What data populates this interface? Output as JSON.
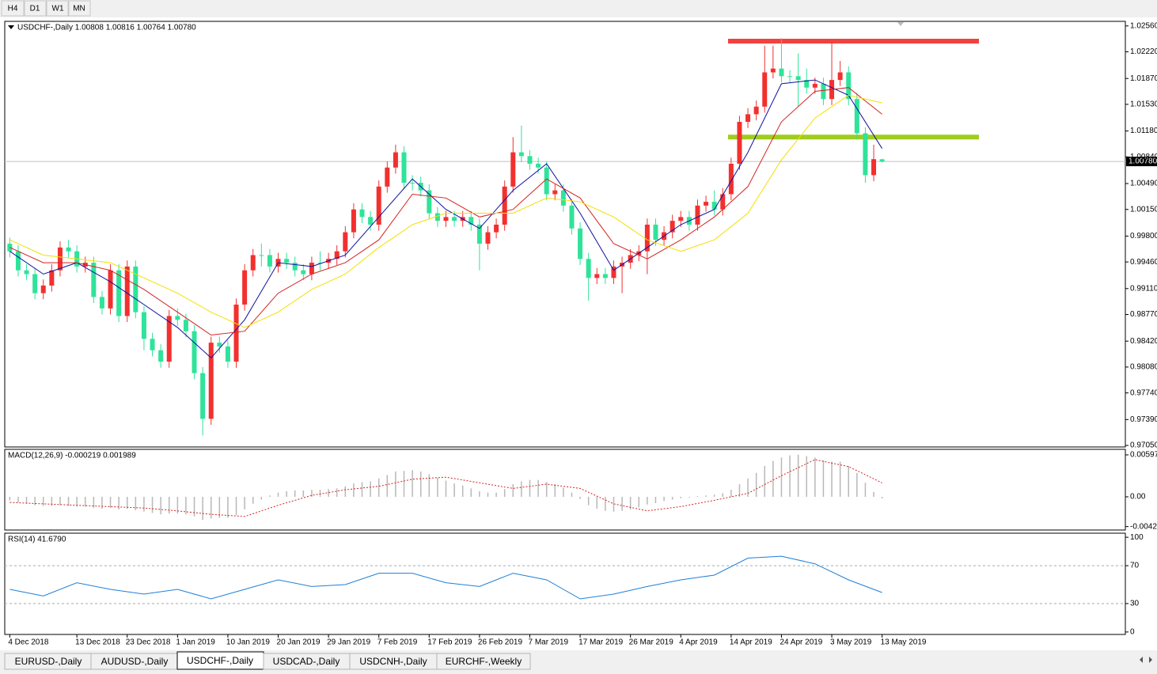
{
  "toolbar": {
    "periods": [
      "H4",
      "D1",
      "W1",
      "MN"
    ]
  },
  "tabs": {
    "items": [
      "EURUSD-,Daily",
      "AUDUSD-,Daily",
      "USDCHF-,Daily",
      "USDCAD-,Daily",
      "USDCNH-,Daily",
      "EURCHF-,Weekly"
    ]
  },
  "chart_data": [
    {
      "type": "candlestick",
      "title": "USDCHF-,Daily  1.00808 1.00816 1.00764 1.00780",
      "up_color": "#f2302e",
      "down_color": "#2fe39a",
      "open": [
        0.997,
        0.996,
        0.9935,
        0.993,
        0.9905,
        0.9915,
        0.9935,
        0.9965,
        0.996,
        0.994,
        0.9945,
        0.99,
        0.9885,
        0.9935,
        0.9875,
        0.994,
        0.988,
        0.9845,
        0.983,
        0.9815,
        0.9875,
        0.987,
        0.9855,
        0.98,
        0.974,
        0.984,
        0.9835,
        0.9815,
        0.989,
        0.9935,
        0.9955,
        0.9955,
        0.994,
        0.995,
        0.9945,
        0.9935,
        0.993,
        0.9945,
        0.9945,
        0.995,
        0.996,
        0.9985,
        1.0015,
        1.0005,
        0.9995,
        1.0045,
        1.007,
        1.009,
        1.005,
        1.005,
        1.004,
        1.001,
        1.0,
        1.0005,
        1.0,
        1.0005,
        0.9995,
        0.997,
        0.9985,
        0.9995,
        1.0045,
        1.009,
        1.0085,
        1.0075,
        1.007,
        1.0035,
        1.004,
        1.002,
        0.999,
        0.995,
        0.9925,
        0.993,
        0.9925,
        0.994,
        0.9945,
        0.9955,
        0.996,
        0.9995,
        0.9975,
        0.9985,
        1.0,
        1.0005,
        0.9995,
        1.002,
        1.0025,
        1.0015,
        1.0035,
        1.0075,
        1.013,
        1.014,
        1.015,
        1.0195,
        1.02,
        1.019,
        1.019,
        1.0185,
        1.0175,
        1.018,
        1.016,
        1.0185,
        1.0195,
        1.016,
        1.0115,
        1.006,
        1.00808
      ],
      "high": [
        0.9978,
        0.9968,
        0.9943,
        0.9938,
        0.9923,
        0.9943,
        0.9973,
        0.9975,
        0.9968,
        0.9953,
        0.9953,
        0.9908,
        0.9943,
        0.9943,
        0.9948,
        0.9948,
        0.9888,
        0.9853,
        0.9838,
        0.9883,
        0.9885,
        0.9878,
        0.9863,
        0.9808,
        0.9848,
        0.9848,
        0.9843,
        0.9898,
        0.9943,
        0.9963,
        0.997,
        0.9963,
        0.9958,
        0.9958,
        0.9953,
        0.9943,
        0.9953,
        0.996,
        0.9958,
        0.9968,
        0.9993,
        1.0023,
        1.0023,
        1.0013,
        1.0053,
        1.0078,
        1.01,
        1.0098,
        1.006,
        1.0058,
        1.0048,
        1.0018,
        1.0013,
        1.0013,
        1.0013,
        1.0013,
        1.0003,
        0.9993,
        1.0003,
        1.0053,
        1.011,
        1.0125,
        1.0093,
        1.0083,
        1.0078,
        1.0048,
        1.0048,
        1.0028,
        0.9998,
        0.9958,
        0.9938,
        0.9938,
        0.9948,
        0.9953,
        0.9963,
        0.9968,
        1.0003,
        1.0003,
        0.9993,
        1.0008,
        1.0013,
        1.0013,
        1.0028,
        1.0033,
        1.004,
        1.0043,
        1.0083,
        1.0138,
        1.0148,
        1.0158,
        1.023,
        1.023,
        1.024,
        1.0198,
        1.022,
        1.02,
        1.0188,
        1.0188,
        1.0235,
        1.021,
        1.0203,
        1.0168,
        1.0123,
        1.01,
        1.00816
      ],
      "low": [
        0.9952,
        0.9927,
        0.9922,
        0.9897,
        0.9897,
        0.9907,
        0.9927,
        0.9952,
        0.9932,
        0.9932,
        0.9892,
        0.9877,
        0.9877,
        0.9867,
        0.9867,
        0.9872,
        0.983,
        0.9822,
        0.9807,
        0.9807,
        0.9862,
        0.9847,
        0.9792,
        0.9718,
        0.9732,
        0.9827,
        0.9807,
        0.9807,
        0.9882,
        0.9927,
        0.994,
        0.9932,
        0.9932,
        0.9937,
        0.9927,
        0.9922,
        0.9922,
        0.9935,
        0.9937,
        0.9942,
        0.9952,
        0.9977,
        0.9997,
        0.9987,
        0.9987,
        1.0037,
        1.0062,
        1.0042,
        1.004,
        1.0032,
        1.0002,
        0.9992,
        0.9992,
        0.9992,
        0.9992,
        0.9987,
        0.9935,
        0.9962,
        0.9977,
        0.9987,
        1.0037,
        1.0077,
        1.0067,
        1.0062,
        1.0027,
        1.0027,
        1.0012,
        0.9982,
        0.9942,
        0.9895,
        0.9917,
        0.9917,
        0.9917,
        0.9905,
        0.9937,
        0.9947,
        0.993,
        0.9967,
        0.9967,
        0.9977,
        0.9992,
        0.9987,
        0.9987,
        1.0012,
        1.0007,
        1.0007,
        1.0027,
        1.0067,
        1.0122,
        1.0132,
        1.0142,
        1.0187,
        1.0182,
        1.0182,
        1.015,
        1.0167,
        1.0167,
        1.0152,
        1.0152,
        1.0177,
        1.0152,
        1.0107,
        1.005,
        1.0052,
        1.00764
      ],
      "close": [
        0.996,
        0.9935,
        0.993,
        0.9905,
        0.9915,
        0.9935,
        0.9965,
        0.996,
        0.994,
        0.9945,
        0.99,
        0.9885,
        0.9935,
        0.9875,
        0.994,
        0.988,
        0.9845,
        0.983,
        0.9815,
        0.9875,
        0.987,
        0.9855,
        0.98,
        0.974,
        0.984,
        0.9835,
        0.9815,
        0.989,
        0.9935,
        0.9955,
        0.9955,
        0.994,
        0.995,
        0.9945,
        0.9935,
        0.993,
        0.9945,
        0.9945,
        0.995,
        0.996,
        0.9985,
        1.0015,
        1.0005,
        0.9995,
        1.0045,
        1.007,
        1.009,
        1.005,
        1.005,
        1.004,
        1.001,
        1.0,
        1.0005,
        1.0,
        1.0005,
        0.9995,
        0.997,
        0.9985,
        0.9995,
        1.0045,
        1.009,
        1.0085,
        1.0075,
        1.007,
        1.0035,
        1.004,
        1.002,
        0.999,
        0.995,
        0.9925,
        0.993,
        0.9925,
        0.994,
        0.9945,
        0.9955,
        0.996,
        0.9995,
        0.9975,
        0.9985,
        1.0,
        1.0005,
        0.9995,
        1.002,
        1.0025,
        1.0015,
        1.0035,
        1.0075,
        1.013,
        1.014,
        1.015,
        1.0195,
        1.02,
        1.019,
        1.019,
        1.0185,
        1.0175,
        1.018,
        1.016,
        1.0185,
        1.0195,
        1.016,
        1.0115,
        1.006,
        1.0081,
        1.0078
      ],
      "lines": [
        {
          "color": "#1010a0",
          "x": [
            0,
            4,
            8,
            12,
            16,
            20,
            24,
            28,
            32,
            36,
            40,
            44,
            48,
            52,
            56,
            60,
            64,
            68,
            72,
            76,
            80,
            84,
            88,
            92,
            96,
            100,
            104
          ],
          "values": [
            0.996,
            0.993,
            0.9945,
            0.992,
            0.989,
            0.986,
            0.982,
            0.987,
            0.9945,
            0.994,
            0.9955,
            1.0005,
            1.0055,
            1.0015,
            0.999,
            1.004,
            1.0075,
            1.001,
            0.9935,
            0.9965,
            0.9995,
            1.0015,
            1.009,
            1.018,
            1.0185,
            1.0165,
            1.0095
          ]
        },
        {
          "color": "#d42222",
          "x": [
            0,
            4,
            8,
            12,
            16,
            20,
            24,
            28,
            32,
            36,
            40,
            44,
            48,
            52,
            56,
            60,
            64,
            68,
            72,
            76,
            80,
            84,
            88,
            92,
            96,
            100,
            104
          ],
          "values": [
            0.9965,
            0.9945,
            0.9945,
            0.9935,
            0.991,
            0.988,
            0.985,
            0.9855,
            0.9905,
            0.993,
            0.9945,
            0.9975,
            1.0035,
            1.003,
            1.0005,
            1.0015,
            1.0055,
            1.003,
            0.997,
            0.995,
            0.9975,
            1.0005,
            1.0045,
            1.013,
            1.017,
            1.0175,
            1.014
          ]
        },
        {
          "color": "#f2e000",
          "x": [
            0,
            4,
            8,
            12,
            16,
            20,
            24,
            28,
            32,
            36,
            40,
            44,
            48,
            52,
            56,
            60,
            64,
            68,
            72,
            76,
            80,
            84,
            88,
            92,
            96,
            100,
            104
          ],
          "values": [
            0.9975,
            0.9955,
            0.995,
            0.9945,
            0.9925,
            0.9905,
            0.988,
            0.986,
            0.988,
            0.991,
            0.993,
            0.9965,
            0.9995,
            1.001,
            1.001,
            1.001,
            1.003,
            1.0025,
            1.0005,
            0.9975,
            0.996,
            0.9975,
            1.001,
            1.008,
            1.0135,
            1.0165,
            1.0155
          ]
        }
      ],
      "levels": [
        {
          "value": 1.0236,
          "color": "#f2423e"
        },
        {
          "value": 1.011,
          "color": "#9fcd1c"
        }
      ],
      "last_price": {
        "value": 1.0078,
        "label": "1.00780"
      },
      "xlim": [
        -0.6,
        133
      ],
      "xticks": [
        {
          "value": 0,
          "label": "4 Dec 2018"
        },
        {
          "value": 8,
          "label": "13 Dec 2018"
        },
        {
          "value": 14,
          "label": "23 Dec 2018"
        },
        {
          "value": 20,
          "label": "1 Jan 2019"
        },
        {
          "value": 26,
          "label": "10 Jan 2019"
        },
        {
          "value": 32,
          "label": "20 Jan 2019"
        },
        {
          "value": 38,
          "label": "29 Jan 2019"
        },
        {
          "value": 44,
          "label": "7 Feb 2019"
        },
        {
          "value": 50,
          "label": "17 Feb 2019"
        },
        {
          "value": 56,
          "label": "26 Feb 2019"
        },
        {
          "value": 62,
          "label": "7 Mar 2019"
        },
        {
          "value": 68,
          "label": "17 Mar 2019"
        },
        {
          "value": 74,
          "label": "26 Mar 2019"
        },
        {
          "value": 80,
          "label": "4 Apr 2019"
        },
        {
          "value": 86,
          "label": "14 Apr 2019"
        },
        {
          "value": 92,
          "label": "24 Apr 2019"
        },
        {
          "value": 98,
          "label": "3 May 2019"
        },
        {
          "value": 104,
          "label": "13 May 2019"
        }
      ],
      "ylim": [
        0.9703,
        1.0262
      ],
      "yticks": [
        {
          "value": 1.0256,
          "label": "1.02560"
        },
        {
          "value": 1.0222,
          "label": "1.02220"
        },
        {
          "value": 1.0187,
          "label": "1.01870"
        },
        {
          "value": 1.0153,
          "label": "1.01530"
        },
        {
          "value": 1.0118,
          "label": "1.01180"
        },
        {
          "value": 1.0084,
          "label": "1.00840"
        },
        {
          "value": 1.0049,
          "label": "1.00490"
        },
        {
          "value": 1.0015,
          "label": "1.00150"
        },
        {
          "value": 0.998,
          "label": "0.99800"
        },
        {
          "value": 0.9946,
          "label": "0.99460"
        },
        {
          "value": 0.9911,
          "label": "0.99110"
        },
        {
          "value": 0.9877,
          "label": "0.98770"
        },
        {
          "value": 0.9842,
          "label": "0.98420"
        },
        {
          "value": 0.9808,
          "label": "0.98080"
        },
        {
          "value": 0.9774,
          "label": "0.97740"
        },
        {
          "value": 0.9739,
          "label": "0.97390"
        },
        {
          "value": 0.9705,
          "label": "0.97050"
        }
      ]
    },
    {
      "type": "macd",
      "title": "MACD(12,26,9) -0.000219 0.001989",
      "color": "#b8b8b8",
      "values": [
        -0.0005,
        -0.0008,
        -0.001,
        -0.0012,
        -0.0013,
        -0.0013,
        -0.0012,
        -0.0013,
        -0.0014,
        -0.0014,
        -0.0016,
        -0.0017,
        -0.0016,
        -0.0018,
        -0.0017,
        -0.0019,
        -0.0021,
        -0.0023,
        -0.0025,
        -0.0024,
        -0.0024,
        -0.0025,
        -0.0028,
        -0.0033,
        -0.0031,
        -0.003,
        -0.003,
        -0.0026,
        -0.0018,
        -0.001,
        -0.0004,
        0.0002,
        0.0006,
        0.0008,
        0.0009,
        0.0009,
        0.001,
        0.001,
        0.0011,
        0.0012,
        0.0015,
        0.0019,
        0.0021,
        0.0022,
        0.0026,
        0.0031,
        0.0036,
        0.0037,
        0.0038,
        0.0036,
        0.0032,
        0.0027,
        0.0023,
        0.0019,
        0.0016,
        0.0012,
        0.0008,
        0.0006,
        0.0006,
        0.0011,
        0.0018,
        0.0022,
        0.0024,
        0.0024,
        0.0021,
        0.0018,
        0.0013,
        0.0006,
        -0.0003,
        -0.0012,
        -0.0017,
        -0.002,
        -0.0021,
        -0.002,
        -0.0018,
        -0.0015,
        -0.0011,
        -0.0009,
        -0.0006,
        -0.0004,
        -0.0002,
        -0.0001,
        0.0001,
        0.0002,
        0.0003,
        0.0005,
        0.001,
        0.0018,
        0.0026,
        0.0034,
        0.0044,
        0.0051,
        0.0056,
        0.0059,
        0.006,
        0.0058,
        0.0056,
        0.0052,
        0.005,
        0.005,
        0.0044,
        0.0034,
        0.002,
        0.0007,
        -0.000219
      ],
      "signal": {
        "color": "#d42222",
        "x": [
          0,
          4,
          8,
          12,
          16,
          20,
          24,
          28,
          32,
          36,
          40,
          44,
          48,
          52,
          56,
          60,
          64,
          68,
          72,
          76,
          80,
          84,
          88,
          92,
          96,
          100,
          104
        ],
        "values": [
          -0.0008,
          -0.001,
          -0.0012,
          -0.0014,
          -0.0016,
          -0.002,
          -0.0025,
          -0.0028,
          -0.0012,
          0.0002,
          0.001,
          0.0015,
          0.0025,
          0.0028,
          0.002,
          0.0012,
          0.0018,
          0.0012,
          -0.001,
          -0.002,
          -0.0014,
          -0.0005,
          0.0005,
          0.003,
          0.0053,
          0.0043,
          0.001989
        ]
      },
      "ylim": [
        -0.00473,
        0.00676
      ],
      "yticks": [
        0.00597,
        {
          "value": 0,
          "label": "0.00"
        },
        -0.00424
      ]
    },
    {
      "type": "line",
      "title": "RSI(14) 41.6790",
      "color": "#1e7fd8",
      "x": [
        0,
        4,
        8,
        12,
        16,
        20,
        24,
        28,
        32,
        36,
        40,
        44,
        48,
        52,
        56,
        60,
        64,
        68,
        72,
        76,
        80,
        84,
        88,
        92,
        96,
        100,
        104
      ],
      "values": [
        45,
        38,
        52,
        45,
        40,
        45,
        35,
        45,
        55,
        48,
        50,
        62,
        62,
        52,
        48,
        62,
        55,
        35,
        40,
        48,
        55,
        60,
        78,
        80,
        72,
        55,
        41.679
      ],
      "levels": [
        70,
        30
      ],
      "ylim": [
        -2.6,
        104.3
      ],
      "yticks": [
        100,
        70,
        30,
        0
      ]
    }
  ]
}
